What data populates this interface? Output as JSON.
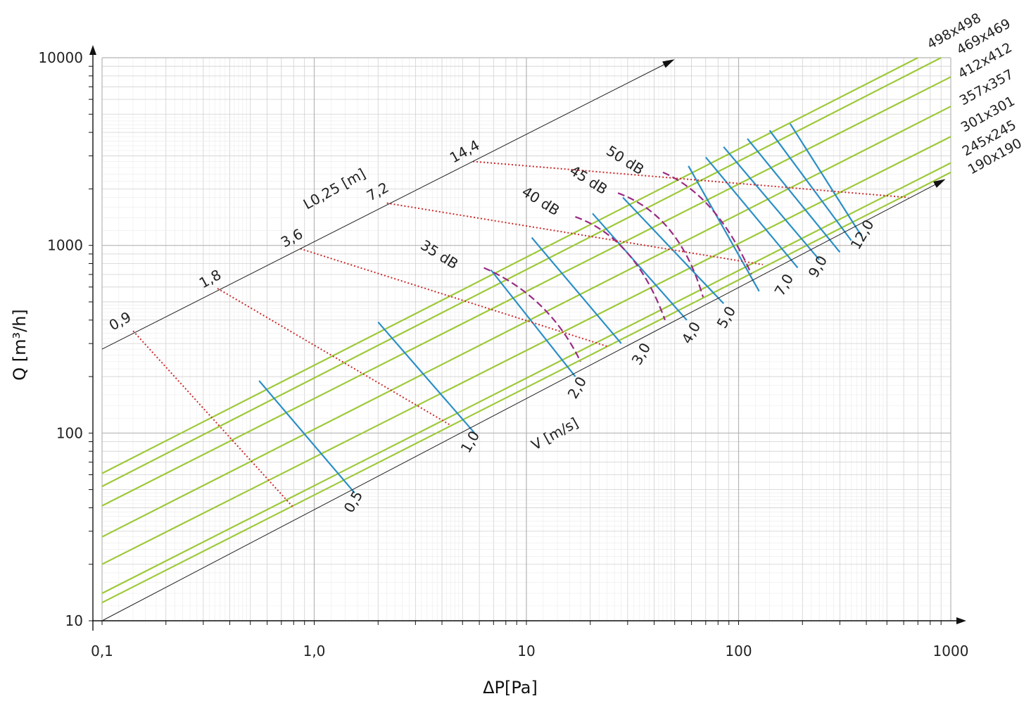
{
  "chart_data": {
    "type": "line",
    "chart_kind": "duct pressure-drop nomogram",
    "x_axis": {
      "label": "ΔP[Pa]",
      "scale": "log",
      "range": [
        0.1,
        1000
      ],
      "tick_labels": [
        "0,1",
        "1,0",
        "10",
        "100",
        "1000"
      ]
    },
    "y_axis": {
      "label": "Q [m³/h]",
      "scale": "log",
      "range": [
        10,
        10000
      ],
      "tick_labels": [
        "10",
        "100",
        "1000",
        "10000"
      ]
    },
    "grid": true,
    "duct_sizes": {
      "color": "#9ec93a",
      "series": [
        {
          "name": "498x498",
          "points": [
            [
              0.1,
              61
            ],
            [
              700,
              10000
            ]
          ]
        },
        {
          "name": "469x469",
          "points": [
            [
              0.1,
              52
            ],
            [
              900,
              10000
            ]
          ]
        },
        {
          "name": "412x412",
          "points": [
            [
              0.1,
              41
            ],
            [
              1000,
              7900
            ]
          ]
        },
        {
          "name": "357x357",
          "points": [
            [
              0.1,
              28
            ],
            [
              1000,
              5500
            ]
          ]
        },
        {
          "name": "301x301",
          "points": [
            [
              0.1,
              20
            ],
            [
              1000,
              3800
            ]
          ]
        },
        {
          "name": "245x245",
          "points": [
            [
              0.1,
              14
            ],
            [
              1000,
              2750
            ]
          ]
        },
        {
          "name": "190x190",
          "points": [
            [
              0.1,
              12.5
            ],
            [
              1000,
              2450
            ]
          ]
        }
      ]
    },
    "velocity": {
      "label": "V [m/s]",
      "color": "#2a8fc7",
      "series": [
        {
          "name": "0,5",
          "points": [
            [
              0.55,
              190
            ],
            [
              1.55,
              48
            ]
          ]
        },
        {
          "name": "1,0",
          "points": [
            [
              2.0,
              390
            ],
            [
              5.7,
              100
            ]
          ]
        },
        {
          "name": "2,0",
          "points": [
            [
              6.8,
              740
            ],
            [
              17,
              200
            ]
          ]
        },
        {
          "name": "3,0",
          "points": [
            [
              10.6,
              1100
            ],
            [
              28,
              300
            ]
          ]
        },
        {
          "name": "4,0",
          "points": [
            [
              20.5,
              1480
            ],
            [
              57,
              400
            ]
          ]
        },
        {
          "name": "5,0",
          "points": [
            [
              28.5,
              1800
            ],
            [
              85,
              490
            ]
          ]
        },
        {
          "name": "7,0",
          "points": [
            [
              58,
              2650
            ],
            [
              125,
              570
            ]
          ]
        },
        {
          "name": "9,0",
          "points": [
            [
              70,
              2950
            ],
            [
              190,
              760
            ]
          ]
        },
        {
          "name": "7,0",
          "points": [
            [
              85,
              3350
            ],
            [
              240,
              840
            ]
          ]
        },
        {
          "name": "9,0",
          "points": [
            [
              110,
              3700
            ],
            [
              300,
              920
            ]
          ]
        },
        {
          "name": "12,0",
          "points": [
            [
              140,
              4100
            ],
            [
              340,
              1060
            ]
          ]
        },
        {
          "name": "12,0",
          "points": [
            [
              175,
              4450
            ],
            [
              380,
              1120
            ]
          ]
        }
      ],
      "axis_labels": [
        "0,5",
        "1,0",
        "2,0",
        "3,0",
        "4,0",
        "5,0",
        "7,0",
        "9,0",
        "12,0"
      ]
    },
    "noise": {
      "color": "#9a2b83",
      "series": [
        {
          "name": "35 dB",
          "points": [
            [
              6.3,
              760
            ],
            [
              11,
              430
            ],
            [
              18,
              240
            ]
          ]
        },
        {
          "name": "40 dB",
          "points": [
            [
              17,
              1420
            ],
            [
              28,
              880
            ],
            [
              45,
              400
            ]
          ]
        },
        {
          "name": "45 dB",
          "points": [
            [
              27,
              1900
            ],
            [
              45,
              1170
            ],
            [
              68,
              530
            ]
          ]
        },
        {
          "name": "50 dB",
          "points": [
            [
              44,
              2450
            ],
            [
              68,
              1480
            ],
            [
              115,
              700
            ]
          ]
        }
      ]
    },
    "throw_length": {
      "label": "L0,25 [m]",
      "color": "#cc2a2a",
      "ticks": [
        "0,9",
        "1,8",
        "3,6",
        "7,2",
        "14,4"
      ],
      "series": [
        {
          "name": "0,9",
          "points": [
            [
              0.14,
              350
            ],
            [
              0.8,
              40
            ]
          ]
        },
        {
          "name": "1,8",
          "points": [
            [
              0.35,
              590
            ],
            [
              4.4,
              110
            ]
          ]
        },
        {
          "name": "3,6",
          "points": [
            [
              0.86,
              960
            ],
            [
              24,
              290
            ]
          ]
        },
        {
          "name": "7,2",
          "points": [
            [
              2.2,
              1680
            ],
            [
              130,
              790
            ]
          ]
        },
        {
          "name": "14,4",
          "points": [
            [
              5.6,
              2800
            ],
            [
              630,
              1800
            ]
          ]
        }
      ]
    }
  }
}
